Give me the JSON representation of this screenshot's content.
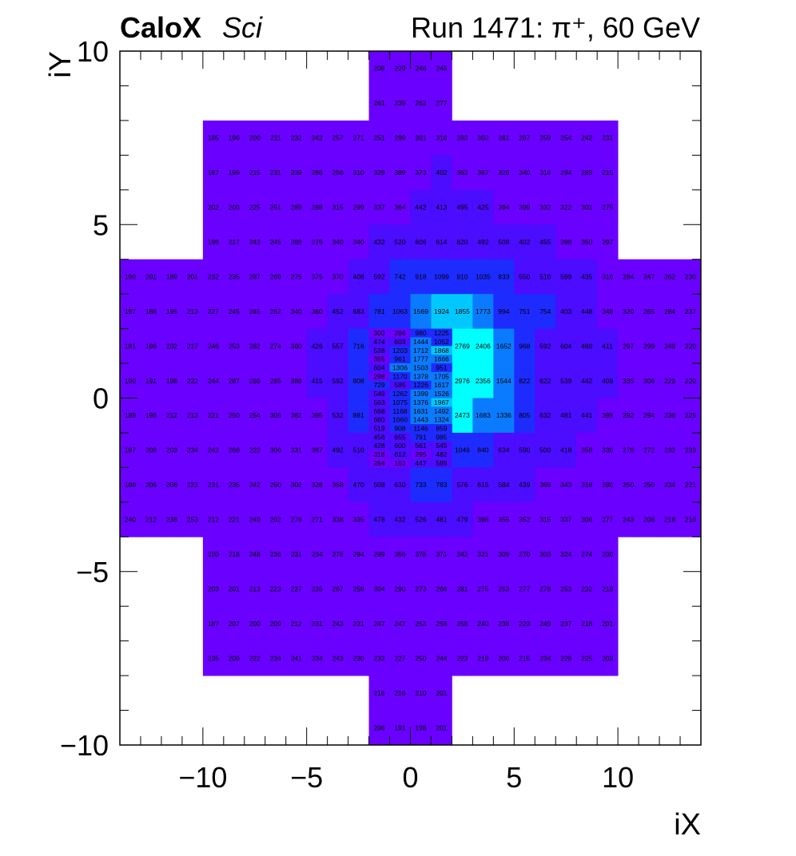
{
  "header": {
    "brand_bold": "CaloX",
    "brand_italic": "Sci",
    "run_title": "Run 1471:   π⁺, 60 GeV"
  },
  "chart_data": {
    "type": "heatmap",
    "xlabel": "iX",
    "ylabel": "iY",
    "xlim": [
      -14,
      14
    ],
    "ylim": [
      -10,
      10
    ],
    "x_ticks": [
      -10,
      -5,
      0,
      5,
      10
    ],
    "y_ticks": [
      -10,
      -5,
      0,
      5,
      10
    ],
    "x_tick_labels": [
      "−10",
      "−5",
      "0",
      "5",
      "10"
    ],
    "y_tick_labels": [
      "−10",
      "−5",
      "0",
      "5",
      "10"
    ],
    "colors": {
      "base": "#6a00ff",
      "low": "#4b0cff",
      "mid": "#1e2bff",
      "high": "#0a7bff",
      "peak": "#00ffff"
    },
    "rows": [
      {
        "y": 9.5,
        "x0": -2,
        "vals": [
          208,
          229,
          246,
          245
        ]
      },
      {
        "y": 8.5,
        "x0": -2,
        "vals": [
          261,
          239,
          262,
          277
        ]
      },
      {
        "y": 7.5,
        "x0": -10,
        "vals": [
          185,
          196,
          200,
          211,
          232,
          242,
          257,
          271,
          251,
          299,
          301,
          316,
          293,
          302,
          281,
          267,
          259,
          254,
          242,
          231
        ]
      },
      {
        "y": 6.5,
        "x0": -10,
        "vals": [
          187,
          199,
          215,
          231,
          239,
          286,
          256,
          310,
          329,
          389,
          373,
          402,
          363,
          387,
          326,
          340,
          314,
          294,
          283,
          215
        ]
      },
      {
        "y": 5.5,
        "x0": -10,
        "vals": [
          202,
          203,
          225,
          251,
          289,
          288,
          315,
          299,
          337,
          364,
          442,
          413,
          495,
          425,
          394,
          399,
          332,
          322,
          301,
          275
        ]
      },
      {
        "y": 4.5,
        "x0": -10,
        "vals": [
          198,
          217,
          243,
          245,
          269,
          276,
          340,
          340,
          432,
          520,
          606,
          614,
          620,
          492,
          508,
          402,
          455,
          398,
          350,
          297
        ]
      },
      {
        "y": 3.5,
        "x0": -14,
        "vals": [
          190,
          201,
          189,
          201,
          232,
          235,
          287,
          269,
          275,
          375,
          370,
          408,
          592,
          742,
          918,
          1099,
          910,
          1035,
          833,
          550,
          510,
          599,
          435,
          316,
          284,
          247,
          262,
          230
        ]
      },
      {
        "y": 2.5,
        "x0": -14,
        "vals": [
          197,
          188,
          195,
          213,
          227,
          245,
          245,
          252,
          340,
          360,
          452,
          683,
          781,
          1063,
          1569,
          1924,
          1855,
          1773,
          994,
          751,
          754,
          403,
          448,
          348,
          320,
          265,
          284,
          237
        ]
      },
      {
        "y": 1.5,
        "x0": -14,
        "vals": [
          181,
          196,
          202,
          217,
          246,
          253,
          282,
          274,
          360,
          426,
          557,
          716,
          null,
          null,
          null,
          null,
          2769,
          2406,
          1652,
          968,
          592,
          604,
          480,
          411,
          297,
          299,
          249,
          220
        ]
      },
      {
        "y": 0.5,
        "x0": -14,
        "vals": [
          190,
          191,
          198,
          222,
          244,
          287,
          269,
          285,
          388,
          415,
          592,
          808,
          null,
          null,
          null,
          null,
          2976,
          2356,
          1544,
          822,
          622,
          539,
          442,
          409,
          335,
          306,
          229,
          220
        ]
      },
      {
        "y": -0.5,
        "x0": -14,
        "vals": [
          189,
          198,
          212,
          213,
          221,
          250,
          254,
          305,
          362,
          395,
          532,
          881,
          null,
          null,
          null,
          null,
          2473,
          1683,
          1336,
          805,
          632,
          481,
          441,
          399,
          292,
          294,
          236,
          225
        ]
      },
      {
        "y": -1.5,
        "x0": -14,
        "vals": [
          187,
          208,
          203,
          234,
          242,
          268,
          222,
          306,
          331,
          387,
          492,
          510,
          null,
          null,
          null,
          null,
          1046,
          840,
          634,
          590,
          500,
          418,
          358,
          330,
          276,
          272,
          232,
          233
        ]
      },
      {
        "y": -2.5,
        "x0": -14,
        "vals": [
          188,
          206,
          208,
          223,
          231,
          235,
          242,
          260,
          302,
          328,
          358,
          470,
          508,
          630,
          733,
          783,
          576,
          615,
          584,
          439,
          369,
          343,
          318,
          280,
          250,
          250,
          234,
          221
        ]
      },
      {
        "y": -3.5,
        "x0": -14,
        "vals": [
          240,
          212,
          238,
          253,
          212,
          221,
          249,
          202,
          276,
          271,
          338,
          335,
          478,
          432,
          526,
          481,
          479,
          398,
          355,
          352,
          315,
          337,
          306,
          277,
          243,
          208,
          218,
          216
        ]
      },
      {
        "y": -4.5,
        "x0": -10,
        "vals": [
          220,
          218,
          248,
          236,
          231,
          234,
          276,
          294,
          299,
          356,
          378,
          371,
          342,
          321,
          309,
          270,
          303,
          324,
          274,
          230
        ]
      },
      {
        "y": -5.5,
        "x0": -10,
        "vals": [
          203,
          201,
          213,
          223,
          227,
          235,
          267,
          258,
          304,
          290,
          273,
          266,
          281,
          275,
          253,
          277,
          278,
          253,
          232,
          218
        ]
      },
      {
        "y": -6.5,
        "x0": -10,
        "vals": [
          187,
          207,
          200,
          209,
          212,
          231,
          243,
          231,
          247,
          247,
          253,
          258,
          258,
          240,
          238,
          223,
          249,
          237,
          218,
          201
        ]
      },
      {
        "y": -7.5,
        "x0": -10,
        "vals": [
          235,
          209,
          222,
          234,
          241,
          234,
          243,
          230,
          232,
          227,
          250,
          244,
          223,
          219,
          206,
          215,
          234,
          229,
          225,
          203
        ]
      },
      {
        "y": -8.5,
        "x0": -2,
        "vals": [
          216,
          216,
          210,
          201
        ]
      },
      {
        "y": -9.5,
        "x0": -2,
        "vals": [
          206,
          191,
          198,
          201
        ]
      }
    ],
    "fine_grid": {
      "x0": -2,
      "y_top": 2,
      "rows": 16,
      "cols": 4,
      "values": [
        [
          300,
          266,
          980,
          1225
        ],
        [
          474,
          603,
          1444,
          1052
        ],
        [
          528,
          1203,
          1712,
          1868
        ],
        [
          385,
          961,
          1777,
          1666
        ],
        [
          604,
          1306,
          1503,
          951
        ],
        [
          298,
          1170,
          1378,
          1705
        ],
        [
          729,
          585,
          1226,
          1617
        ],
        [
          549,
          1262,
          1399,
          1526
        ],
        [
          563,
          1075,
          1376,
          1967
        ],
        [
          668,
          1168,
          1631,
          1492
        ],
        [
          660,
          1060,
          1443,
          1324
        ],
        [
          519,
          908,
          1146,
          859
        ],
        [
          456,
          655,
          791,
          985
        ],
        [
          428,
          600,
          561,
          545
        ],
        [
          318,
          612,
          295,
          482
        ],
        [
          264,
          153,
          447,
          589
        ]
      ]
    }
  }
}
